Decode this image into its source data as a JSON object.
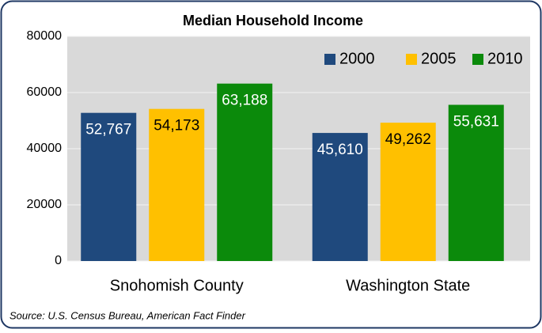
{
  "chart_data": {
    "type": "bar",
    "title": "Median Household Income",
    "source": "Source:  U.S. Census Bureau, American Fact Finder",
    "categories": [
      "Snohomish County",
      "Washington State"
    ],
    "series": [
      {
        "name": "2000",
        "color": "#1f497d",
        "values": [
          52767,
          45610
        ],
        "value_labels": [
          "52,767",
          "45,610"
        ]
      },
      {
        "name": "2005",
        "color": "#ffc000",
        "values": [
          54173,
          49262
        ],
        "value_labels": [
          "54,173",
          "49,262"
        ]
      },
      {
        "name": "2010",
        "color": "#0b8a0b",
        "values": [
          63188,
          55631
        ],
        "value_labels": [
          "63,188",
          "55,631"
        ]
      }
    ],
    "ylim": [
      0,
      80000
    ],
    "yticks": [
      0,
      20000,
      40000,
      60000,
      80000
    ],
    "grid": true,
    "legend": "upper right"
  }
}
